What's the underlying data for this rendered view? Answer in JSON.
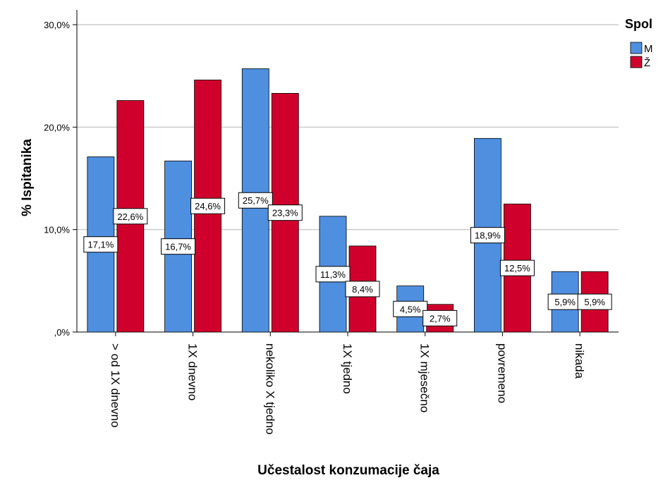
{
  "colors": {
    "M": "#4f8fe0",
    "Z": "#d0002c",
    "grid": "#cccccc"
  },
  "chart_data": {
    "type": "bar",
    "title": "",
    "xlabel": "Učestalost konzumacije čaja",
    "ylabel": "% Ispitanika",
    "ylim": [
      0,
      30
    ],
    "yticks": [
      0,
      10,
      20,
      30
    ],
    "ytick_labels": [
      ",0%",
      "10,0%",
      "20,0%",
      "30,0%"
    ],
    "grid": true,
    "categories": [
      "> od 1X dnevno",
      "1X dnevno",
      "nekoliko X tjedno",
      "1X tjedno",
      "1X mjesečno",
      "povremeno",
      "nikada"
    ],
    "series": [
      {
        "name": "M",
        "values": [
          17.1,
          16.7,
          25.7,
          11.3,
          4.5,
          18.9,
          5.9
        ],
        "labels": [
          "17,1%",
          "16,7%",
          "25,7%",
          "11,3%",
          "4,5%",
          "18,9%",
          "5,9%"
        ]
      },
      {
        "name": "Ž",
        "values": [
          22.6,
          24.6,
          23.3,
          8.4,
          2.7,
          12.5,
          5.9
        ],
        "labels": [
          "22,6%",
          "24,6%",
          "23,3%",
          "8,4%",
          "2,7%",
          "12,5%",
          "5,9%"
        ]
      }
    ],
    "legend": {
      "title": "Spol",
      "position": "top-right"
    }
  }
}
